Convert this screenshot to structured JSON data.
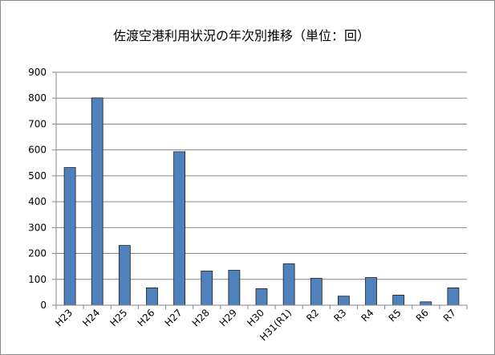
{
  "chart_data": {
    "type": "bar",
    "title": "佐渡空港利用状況の年次別推移（単位：回）",
    "xlabel": "",
    "ylabel": "",
    "categories": [
      "H23",
      "H24",
      "H25",
      "H26",
      "H27",
      "H28",
      "H29",
      "H30",
      "H31(R1)",
      "R2",
      "R3",
      "R4",
      "R5",
      "R6",
      "R7"
    ],
    "values": [
      532,
      801,
      231,
      67,
      593,
      132,
      135,
      64,
      160,
      104,
      35,
      107,
      39,
      13,
      67
    ],
    "ylim": [
      0,
      900
    ],
    "yticks": [
      0,
      100,
      200,
      300,
      400,
      500,
      600,
      700,
      800,
      900
    ],
    "grid": true,
    "legend": "none",
    "bar_color": "#4f81bd",
    "bar_edge_color": "#1f1f1f",
    "grid_color": "#868686"
  }
}
